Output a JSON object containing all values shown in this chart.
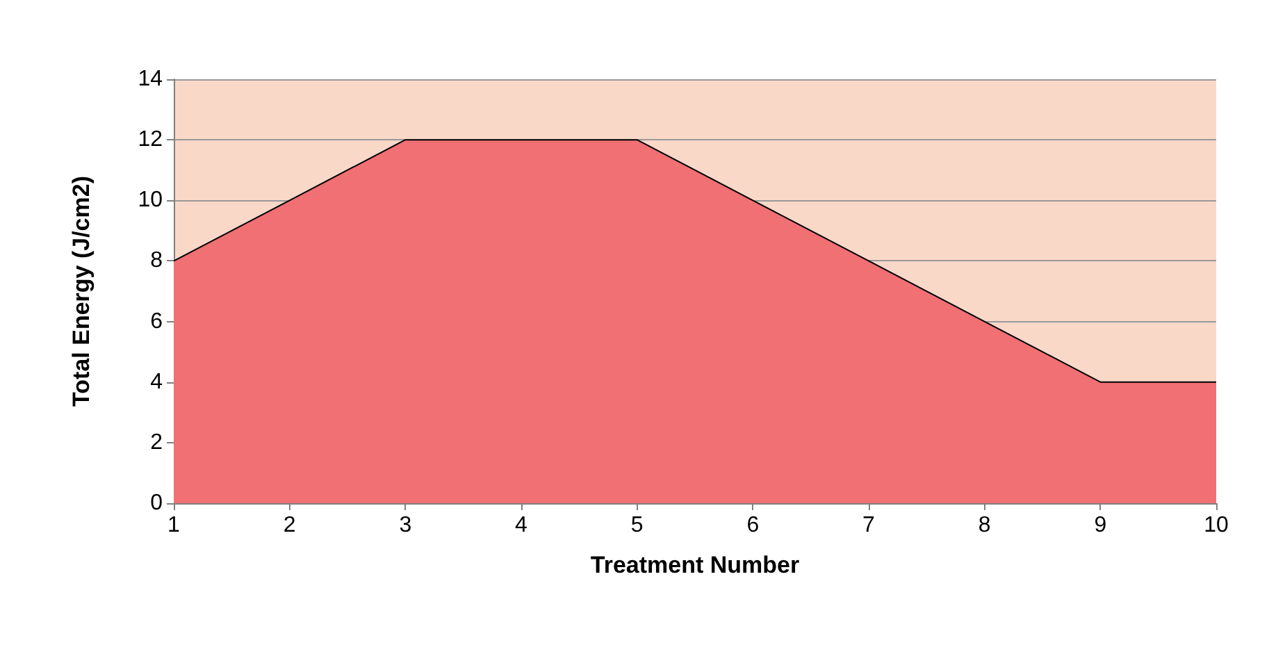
{
  "chart_data": {
    "type": "area",
    "xlabel": "Treatment Number",
    "ylabel": "Total Energy (J/cm2)",
    "x": [
      1,
      2,
      3,
      4,
      5,
      6,
      7,
      8,
      9,
      10
    ],
    "series": [
      {
        "color": "#f07074",
        "values": [
          8,
          10,
          12,
          12,
          12,
          10,
          8,
          6,
          4,
          4
        ]
      }
    ],
    "xlim": [
      1,
      10
    ],
    "xticks": [
      1,
      2,
      3,
      4,
      5,
      6,
      7,
      8,
      9,
      10
    ],
    "ylim": [
      0,
      14
    ],
    "yticks": [
      0,
      2,
      4,
      6,
      8,
      10,
      12,
      14
    ],
    "grid": "y",
    "marker": "none",
    "bands": [
      {
        "axis": "y",
        "from": 0,
        "to": 14,
        "color": "#f9d8c8"
      }
    ]
  }
}
